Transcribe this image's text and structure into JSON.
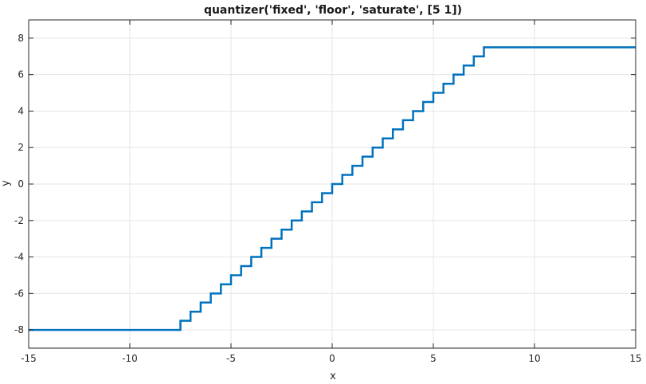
{
  "chart_data": {
    "type": "line",
    "title": "quantizer('fixed', 'floor', 'saturate', [5  1])",
    "xlabel": "x",
    "ylabel": "y",
    "xlim": [
      -15,
      15
    ],
    "ylim": [
      -9,
      9
    ],
    "xticks": [
      -15,
      -10,
      -5,
      0,
      5,
      10,
      15
    ],
    "yticks": [
      -8,
      -6,
      -4,
      -2,
      0,
      2,
      4,
      6,
      8
    ],
    "grid": true,
    "series": [
      {
        "color": "#0072BD",
        "line_width": 2.5,
        "x": [
          -15,
          -7.5,
          -7.5,
          -7,
          -7,
          -6.5,
          -6.5,
          -6,
          -6,
          -5.5,
          -5.5,
          -5,
          -5,
          -4.5,
          -4.5,
          -4,
          -4,
          -3.5,
          -3.5,
          -3,
          -3,
          -2.5,
          -2.5,
          -2,
          -2,
          -1.5,
          -1.5,
          -1,
          -1,
          -0.5,
          -0.5,
          0,
          0,
          0.5,
          0.5,
          1,
          1,
          1.5,
          1.5,
          2,
          2,
          2.5,
          2.5,
          3,
          3,
          3.5,
          3.5,
          4,
          4,
          4.5,
          4.5,
          5,
          5,
          5.5,
          5.5,
          6,
          6,
          6.5,
          6.5,
          7,
          7,
          7.5,
          7.5,
          15
        ],
        "y": [
          -8,
          -8,
          -7.5,
          -7.5,
          -7,
          -7,
          -6.5,
          -6.5,
          -6,
          -6,
          -5.5,
          -5.5,
          -5,
          -5,
          -4.5,
          -4.5,
          -4,
          -4,
          -3.5,
          -3.5,
          -3,
          -3,
          -2.5,
          -2.5,
          -2,
          -2,
          -1.5,
          -1.5,
          -1,
          -1,
          -0.5,
          -0.5,
          0,
          0,
          0.5,
          0.5,
          1,
          1,
          1.5,
          1.5,
          2,
          2,
          2.5,
          2.5,
          3,
          3,
          3.5,
          3.5,
          4,
          4,
          4.5,
          4.5,
          5,
          5,
          5.5,
          5.5,
          6,
          6,
          6.5,
          6.5,
          7,
          7,
          7.5,
          7.5
        ]
      }
    ]
  }
}
